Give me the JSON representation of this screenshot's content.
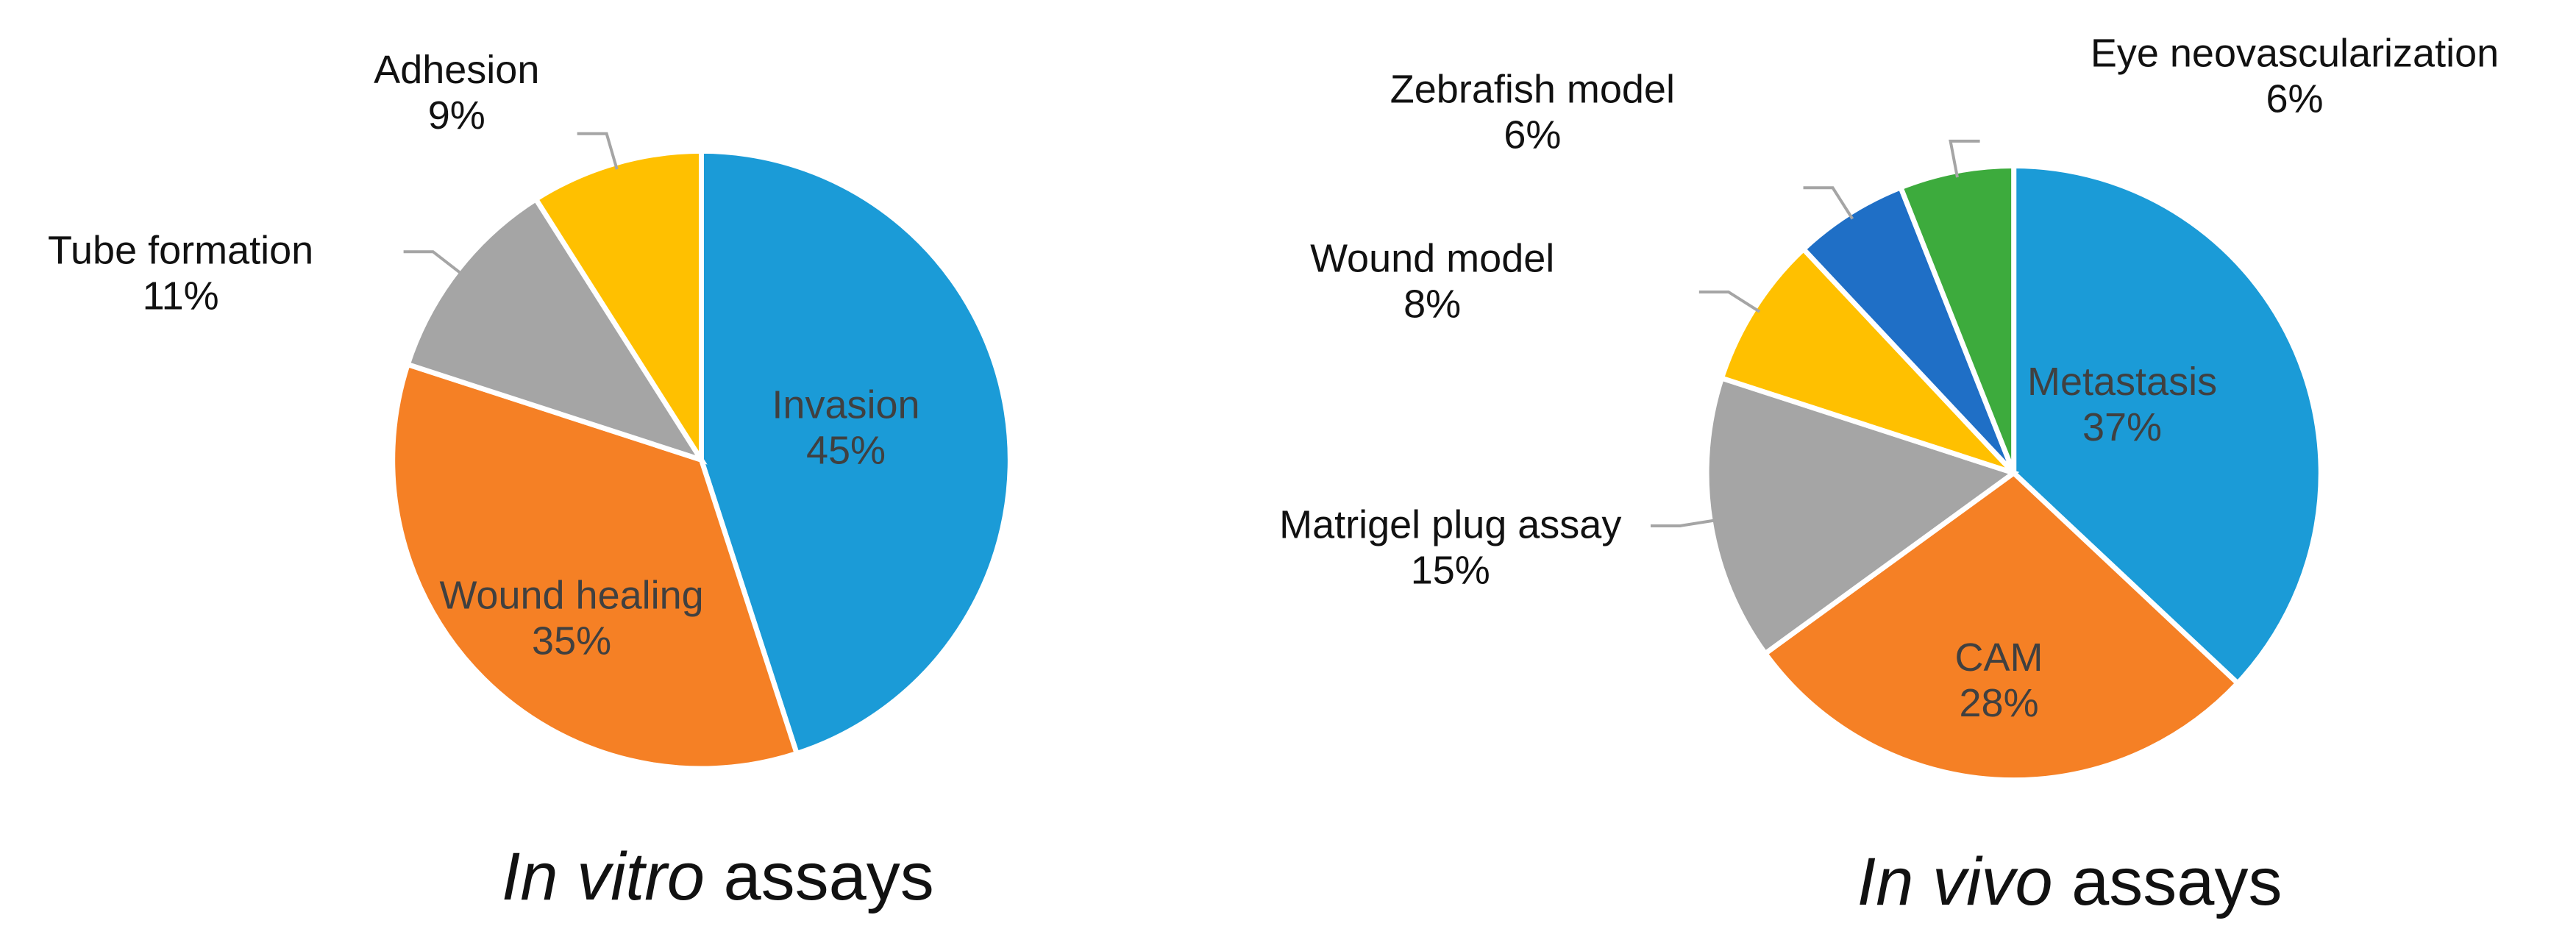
{
  "chart_data": [
    {
      "type": "pie",
      "title": [
        "In vitro",
        "assays"
      ],
      "categories": [
        "Invasion",
        "Wound healing",
        "Tube formation",
        "Adhesion"
      ],
      "values": [
        45,
        35,
        11,
        9
      ],
      "value_labels": [
        "45%",
        "35%",
        "11%",
        "9%"
      ],
      "colors": [
        "#1b9bd7",
        "#f58025",
        "#a5a5a5",
        "#ffc000"
      ]
    },
    {
      "type": "pie",
      "title": [
        "In vivo",
        "assays"
      ],
      "categories": [
        "Metastasis",
        "CAM",
        "Matrigel plug assay",
        "Wound model",
        "Zebrafish model",
        "Eye neovascularization"
      ],
      "values": [
        37,
        28,
        15,
        8,
        6,
        6
      ],
      "value_labels": [
        "37%",
        "28%",
        "15%",
        "8%",
        "6%",
        "6%"
      ],
      "colors": [
        "#1b9bd7",
        "#f58025",
        "#a5a5a5",
        "#ffc000",
        "#1f6fc6",
        "#3dab3d"
      ]
    }
  ]
}
